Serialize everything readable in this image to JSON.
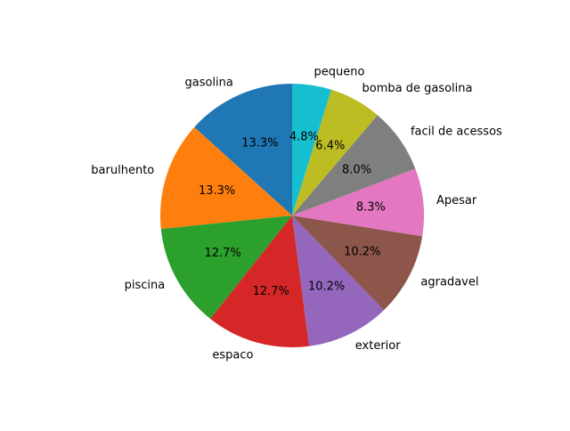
{
  "chart_data": {
    "type": "pie",
    "title": "",
    "categories": [
      "gasolina",
      "barulhento",
      "piscina",
      "espaco",
      "exterior",
      "agradavel",
      "Apesar",
      "facil de acessos",
      "bomba de gasolina",
      "pequeno"
    ],
    "values": [
      13.3,
      13.3,
      12.7,
      12.7,
      10.2,
      10.2,
      8.3,
      8.0,
      6.4,
      4.8
    ],
    "percent_labels": [
      "13.3%",
      "13.3%",
      "12.7%",
      "12.7%",
      "10.2%",
      "10.2%",
      "8.3%",
      "8.0%",
      "6.4%",
      "4.8%"
    ],
    "colors": [
      "#1f77b4",
      "#ff7f0e",
      "#2ca02c",
      "#d62728",
      "#9467bd",
      "#8c564b",
      "#e377c2",
      "#7f7f7f",
      "#bcbd22",
      "#17becf"
    ],
    "start_angle_deg": 90,
    "direction": "counterclockwise",
    "legend": "none"
  }
}
